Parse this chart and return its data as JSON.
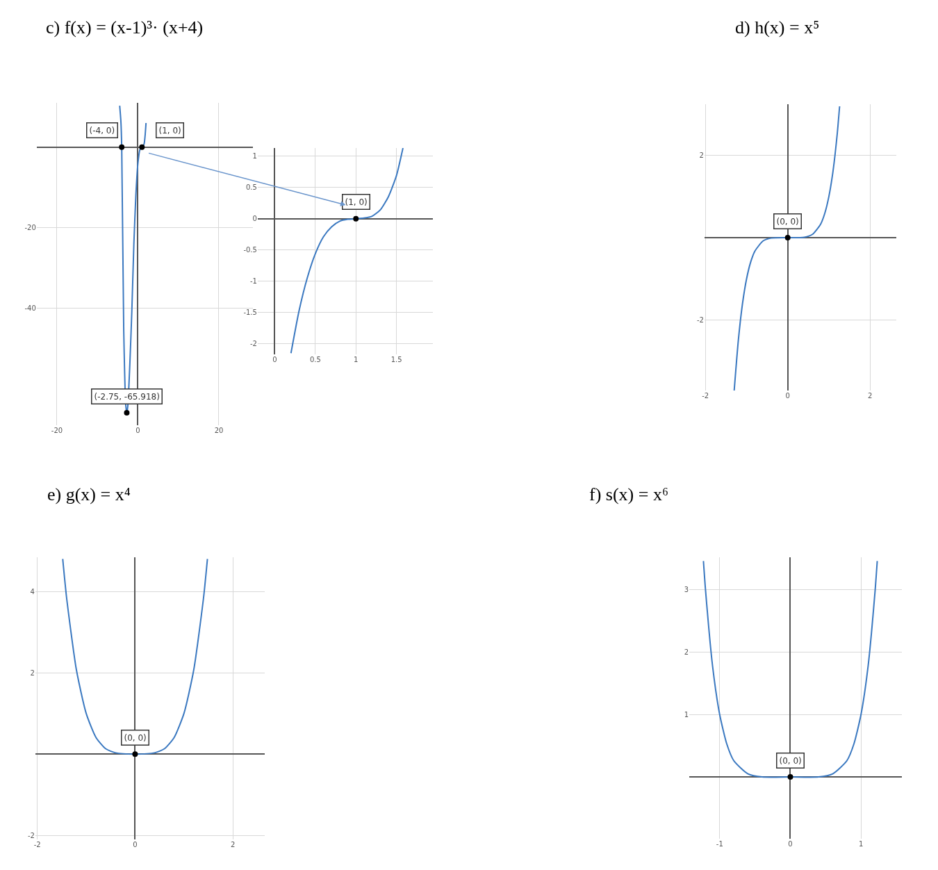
{
  "chart_data": [
    {
      "type": "line",
      "title": "c) f(x) = (x-1)³· (x+4)",
      "xlim": [
        -25,
        28.4
      ],
      "ylim": [
        -69,
        11
      ],
      "xticks": [
        -20,
        0,
        20
      ],
      "yticks": [
        -40,
        -20
      ],
      "grid": true,
      "marker": "none",
      "series": [
        {
          "color": "#3a78c0",
          "x": [
            -4.5,
            -4.2,
            -4,
            -3.5,
            -3,
            -2.75,
            -2.5,
            -2,
            -1.5,
            -1,
            -0.5,
            0,
            0.5,
            1,
            1.5,
            2
          ],
          "values": [
            10.3,
            6.3,
            0,
            -45.6,
            -64,
            -65.9,
            -64.3,
            -54,
            -40.6,
            -24,
            -11.8,
            -4,
            -0.6,
            0,
            0.7,
            6
          ]
        },
        {
          "type": "scatter",
          "marker": "circle",
          "color": "#000000",
          "x": [
            -4,
            1,
            -2.75
          ],
          "values": [
            0,
            0,
            -65.9
          ]
        }
      ],
      "annotations": [
        {
          "text": "(-4, 0)",
          "x": -4,
          "y": 0
        },
        {
          "text": "(1, 0)",
          "x": 1,
          "y": 0
        },
        {
          "text": "(-2.75, -65.918)",
          "x": -2.75,
          "y": -65.918
        }
      ]
    },
    {
      "type": "line",
      "xlim": [
        -0.21,
        1.95
      ],
      "ylim": [
        -2.17,
        1.13
      ],
      "xticks": [
        0,
        0.5,
        1,
        1.5
      ],
      "yticks": [
        -2,
        -1.5,
        -1,
        -0.5,
        0,
        0.5,
        1
      ],
      "grid": true,
      "marker": "none",
      "series": [
        {
          "color": "#3a78c0",
          "x": [
            0.2,
            0.3,
            0.4,
            0.5,
            0.6,
            0.7,
            0.8,
            0.9,
            1,
            1.1,
            1.2,
            1.3,
            1.4,
            1.5,
            1.58
          ],
          "values": [
            -2.15,
            -1.47,
            -0.95,
            -0.56,
            -0.29,
            -0.13,
            -0.04,
            -0.01,
            0,
            0.01,
            0.04,
            0.14,
            0.35,
            0.69,
            1.13
          ]
        },
        {
          "type": "scatter",
          "marker": "circle",
          "color": "#000000",
          "x": [
            1
          ],
          "values": [
            0
          ]
        }
      ],
      "annotations": [
        {
          "text": "(1, 0)",
          "x": 1,
          "y": 0
        }
      ]
    },
    {
      "type": "line",
      "title": "d) h(x) = x⁵",
      "xlim": [
        -2.02,
        2.64
      ],
      "ylim": [
        -3.7,
        3.23
      ],
      "xticks": [
        -2,
        0,
        2
      ],
      "yticks": [
        -2,
        2
      ],
      "grid": true,
      "marker": "none",
      "series": [
        {
          "color": "#3a78c0",
          "x": [
            -1.3,
            -1.2,
            -1.1,
            -1,
            -0.9,
            -0.8,
            -0.6,
            -0.4,
            0,
            0.4,
            0.6,
            0.8,
            0.9,
            1,
            1.1,
            1.2,
            1.26
          ],
          "values": [
            -3.7,
            -2.49,
            -1.61,
            -1,
            -0.59,
            -0.33,
            -0.08,
            -0.01,
            0,
            0.01,
            0.08,
            0.33,
            0.59,
            1,
            1.61,
            2.49,
            3.18
          ]
        },
        {
          "type": "scatter",
          "marker": "circle",
          "color": "#000000",
          "x": [
            0
          ],
          "values": [
            0
          ]
        }
      ],
      "annotations": [
        {
          "text": "(0, 0)",
          "x": 0,
          "y": 0
        }
      ]
    },
    {
      "type": "line",
      "title": "e) g(x) = x⁴",
      "xlim": [
        -2.04,
        2.65
      ],
      "ylim": [
        -2.1,
        4.84
      ],
      "xticks": [
        -2,
        0,
        2
      ],
      "yticks": [
        -2,
        2,
        4
      ],
      "grid": true,
      "marker": "none",
      "series": [
        {
          "color": "#3a78c0",
          "x": [
            -1.48,
            -1.4,
            -1.2,
            -1,
            -0.8,
            -0.6,
            -0.4,
            0,
            0.4,
            0.6,
            0.8,
            1,
            1.2,
            1.4,
            1.48
          ],
          "values": [
            4.8,
            3.84,
            2.07,
            1,
            0.41,
            0.13,
            0.03,
            0,
            0.03,
            0.13,
            0.41,
            1,
            2.07,
            3.84,
            4.8
          ]
        },
        {
          "type": "scatter",
          "marker": "circle",
          "color": "#000000",
          "x": [
            0
          ],
          "values": [
            0
          ]
        }
      ],
      "annotations": [
        {
          "text": "(0, 0)",
          "x": 0,
          "y": 0
        }
      ]
    },
    {
      "type": "line",
      "title": "f) s(x) = x⁶",
      "xlim": [
        -1.43,
        1.58
      ],
      "ylim": [
        -0.99,
        3.52
      ],
      "xticks": [
        -1,
        0,
        1
      ],
      "yticks": [
        1,
        2,
        3
      ],
      "grid": true,
      "marker": "none",
      "series": [
        {
          "color": "#3a78c0",
          "x": [
            -1.23,
            -1.2,
            -1.1,
            -1,
            -0.9,
            -0.8,
            -0.6,
            -0.4,
            0,
            0.4,
            0.6,
            0.8,
            0.9,
            1,
            1.1,
            1.2,
            1.23
          ],
          "values": [
            3.46,
            2.99,
            1.77,
            1,
            0.53,
            0.26,
            0.05,
            0,
            0,
            0,
            0.05,
            0.26,
            0.53,
            1,
            1.77,
            2.99,
            3.46
          ]
        },
        {
          "type": "scatter",
          "marker": "circle",
          "color": "#000000",
          "x": [
            0
          ],
          "values": [
            0
          ]
        }
      ],
      "annotations": [
        {
          "text": "(0, 0)",
          "x": 0,
          "y": 0
        }
      ]
    }
  ]
}
